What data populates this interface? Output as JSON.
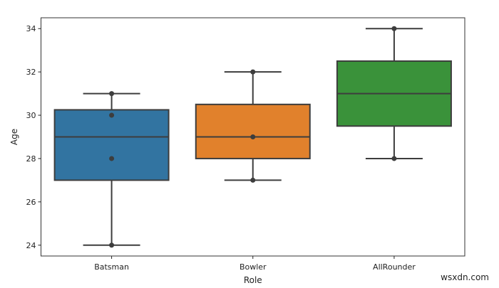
{
  "chart_data": {
    "type": "boxplot",
    "title": "",
    "xlabel": "Role",
    "ylabel": "Age",
    "ylim": [
      23.5,
      34.5
    ],
    "yticks": [
      24,
      26,
      28,
      30,
      32,
      34
    ],
    "grid": false,
    "categories": [
      "Batsman",
      "Bowler",
      "AllRounder"
    ],
    "boxes": [
      {
        "name": "Batsman",
        "min": 24,
        "q1": 27,
        "median": 29,
        "q3": 30.25,
        "max": 31,
        "points": [
          31,
          30,
          28,
          24
        ],
        "color": "#3274a1"
      },
      {
        "name": "Bowler",
        "min": 27,
        "q1": 28,
        "median": 29,
        "q3": 30.5,
        "max": 32,
        "points": [
          32,
          29,
          27
        ],
        "color": "#e1812c"
      },
      {
        "name": "AllRounder",
        "min": 28,
        "q1": 29.5,
        "median": 31,
        "q3": 32.5,
        "max": 34,
        "points": [
          34,
          28
        ],
        "color": "#3a923a"
      }
    ]
  },
  "watermark": "wsxdn.com"
}
